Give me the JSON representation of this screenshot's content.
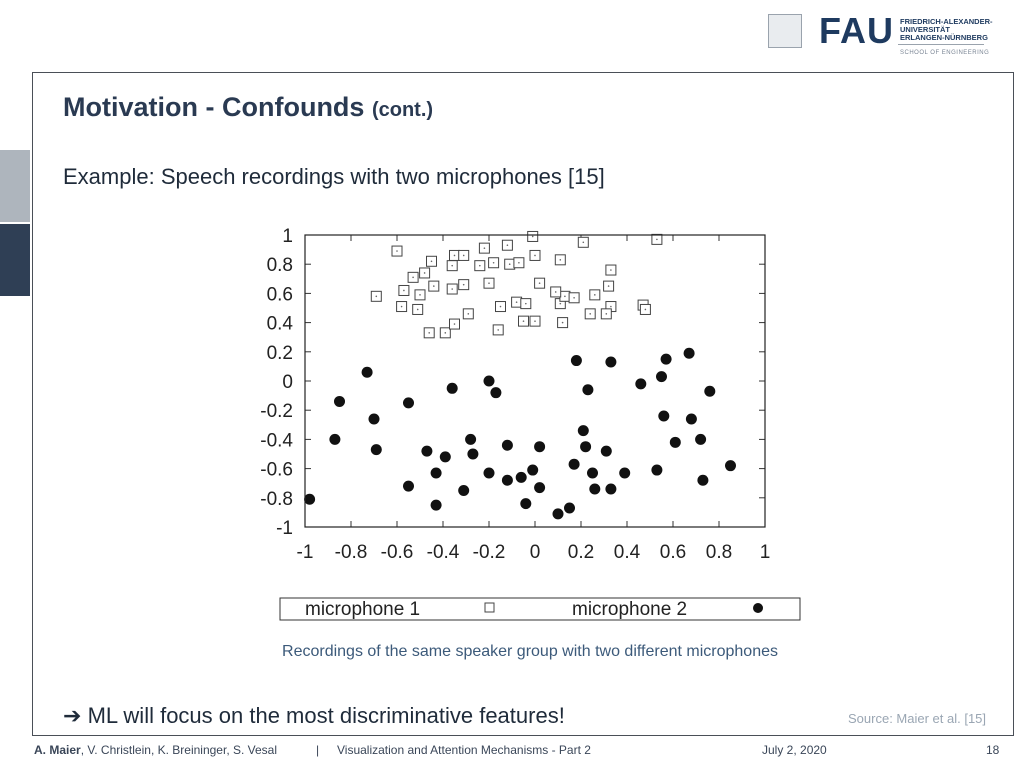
{
  "header": {
    "logo_word": "FAU",
    "university_lines": [
      "FRIEDRICH-ALEXANDER-",
      "UNIVERSITÄT",
      "ERLANGEN-NÜRNBERG"
    ],
    "school": "SCHOOL OF ENGINEERING"
  },
  "slide": {
    "title": "Motivation - Confounds",
    "title_suffix": "(cont.)",
    "example_text": "Example: Speech recordings with two microphones [15]",
    "caption": "Recordings of the same speaker group with two different microphones",
    "bullet_arrow": "➔",
    "bullet_text": "ML will focus on the most discriminative features!",
    "source": "Source: Maier et al. [15]"
  },
  "footer": {
    "author_bold": "A. Maier",
    "authors_rest": ", V. Christlein, K. Breininger, S. Vesal",
    "separator": "|",
    "lecture": "Visualization and Attention Mechanisms - Part 2",
    "date": "July 2, 2020",
    "page": "18"
  },
  "chart_data": {
    "type": "scatter",
    "xlim": [
      -1,
      1
    ],
    "ylim": [
      -1,
      1
    ],
    "xticks": [
      "-1",
      "-0.8",
      "-0.6",
      "-0.4",
      "-0.2",
      "0",
      "0.2",
      "0.4",
      "0.6",
      "0.8",
      "1"
    ],
    "yticks": [
      "1",
      "0.8",
      "0.6",
      "0.4",
      "0.2",
      "0",
      "-0.2",
      "-0.4",
      "-0.6",
      "-0.8",
      "-1"
    ],
    "legend_position": "bottom",
    "series": [
      {
        "name": "microphone 1",
        "marker": "open-square",
        "x": [
          -0.01,
          -0.6,
          -0.12,
          0.21,
          0.53,
          -0.22,
          -0.18,
          -0.35,
          -0.31,
          0.0,
          -0.48,
          -0.53,
          -0.45,
          -0.36,
          -0.24,
          -0.11,
          -0.07,
          0.11,
          0.33,
          -0.69,
          -0.57,
          -0.5,
          -0.44,
          -0.31,
          -0.36,
          -0.2,
          0.02,
          0.32,
          -0.08,
          -0.15,
          0.11,
          0.26,
          0.47,
          -0.58,
          -0.51,
          -0.29,
          -0.04,
          0.13,
          0.17,
          0.33,
          0.48,
          -0.46,
          -0.39,
          -0.35,
          -0.16,
          -0.05,
          0.0,
          0.12,
          0.24,
          0.31,
          0.09
        ],
        "y": [
          0.99,
          0.89,
          0.93,
          0.95,
          0.97,
          0.91,
          0.81,
          0.86,
          0.86,
          0.86,
          0.74,
          0.71,
          0.82,
          0.79,
          0.79,
          0.8,
          0.81,
          0.83,
          0.76,
          0.58,
          0.62,
          0.59,
          0.65,
          0.66,
          0.63,
          0.67,
          0.67,
          0.65,
          0.54,
          0.51,
          0.53,
          0.59,
          0.52,
          0.51,
          0.49,
          0.46,
          0.53,
          0.58,
          0.57,
          0.51,
          0.49,
          0.33,
          0.33,
          0.39,
          0.35,
          0.41,
          0.41,
          0.4,
          0.46,
          0.46,
          0.61
        ]
      },
      {
        "name": "microphone 2",
        "marker": "filled-circle",
        "x": [
          -0.98,
          -0.73,
          -0.85,
          -0.87,
          -0.7,
          -0.69,
          -0.55,
          -0.47,
          -0.43,
          -0.39,
          -0.36,
          -0.28,
          -0.27,
          -0.31,
          -0.2,
          -0.2,
          -0.17,
          -0.12,
          -0.12,
          -0.06,
          -0.01,
          0.02,
          0.02,
          0.1,
          0.15,
          0.17,
          0.18,
          0.21,
          0.22,
          0.23,
          0.26,
          0.31,
          0.33,
          0.33,
          0.39,
          0.46,
          0.53,
          0.55,
          0.56,
          0.57,
          0.61,
          0.67,
          0.68,
          0.72,
          0.73,
          0.76,
          0.85,
          -0.55,
          -0.43,
          -0.04,
          0.25
        ],
        "y": [
          -0.81,
          0.06,
          -0.14,
          -0.4,
          -0.26,
          -0.47,
          -0.15,
          -0.48,
          -0.63,
          -0.52,
          -0.05,
          -0.4,
          -0.5,
          -0.75,
          0.0,
          -0.63,
          -0.08,
          -0.44,
          -0.68,
          -0.66,
          -0.61,
          -0.45,
          -0.73,
          -0.91,
          -0.87,
          -0.57,
          0.14,
          -0.34,
          -0.45,
          -0.06,
          -0.74,
          -0.48,
          -0.74,
          0.13,
          -0.63,
          -0.02,
          -0.61,
          0.03,
          -0.24,
          0.15,
          -0.42,
          0.19,
          -0.26,
          -0.4,
          -0.68,
          -0.07,
          -0.58,
          -0.72,
          -0.85,
          -0.84,
          -0.63
        ]
      }
    ]
  }
}
